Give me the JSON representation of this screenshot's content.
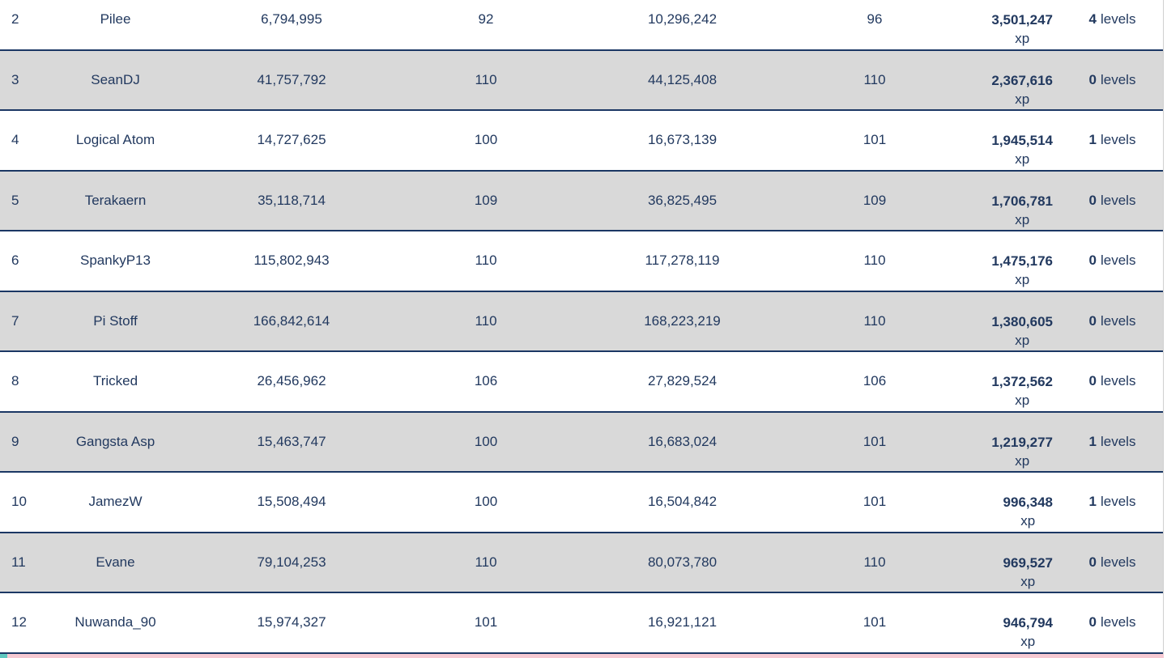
{
  "table": {
    "columns": [
      "rank",
      "name",
      "starting_xp",
      "starting_level",
      "current_xp",
      "current_level",
      "gained_xp",
      "gained_levels"
    ],
    "rows": [
      {
        "rank": "2",
        "name": "Pilee",
        "start_xp": "6,794,995",
        "start_level": "92",
        "current_xp": "10,296,242",
        "current_level": "96",
        "gained_xp": "3,501,247",
        "xp_label": "xp",
        "gained_levels": "4",
        "levels_label": "levels"
      },
      {
        "rank": "3",
        "name": "SeanDJ",
        "start_xp": "41,757,792",
        "start_level": "110",
        "current_xp": "44,125,408",
        "current_level": "110",
        "gained_xp": "2,367,616",
        "xp_label": "xp",
        "gained_levels": "0",
        "levels_label": "levels"
      },
      {
        "rank": "4",
        "name": "Logical Atom",
        "start_xp": "14,727,625",
        "start_level": "100",
        "current_xp": "16,673,139",
        "current_level": "101",
        "gained_xp": "1,945,514",
        "xp_label": "xp",
        "gained_levels": "1",
        "levels_label": "levels"
      },
      {
        "rank": "5",
        "name": "Terakaern",
        "start_xp": "35,118,714",
        "start_level": "109",
        "current_xp": "36,825,495",
        "current_level": "109",
        "gained_xp": "1,706,781",
        "xp_label": "xp",
        "gained_levels": "0",
        "levels_label": "levels"
      },
      {
        "rank": "6",
        "name": "SpankyP13",
        "start_xp": "115,802,943",
        "start_level": "110",
        "current_xp": "117,278,119",
        "current_level": "110",
        "gained_xp": "1,475,176",
        "xp_label": "xp",
        "gained_levels": "0",
        "levels_label": "levels"
      },
      {
        "rank": "7",
        "name": "Pi Stoff",
        "start_xp": "166,842,614",
        "start_level": "110",
        "current_xp": "168,223,219",
        "current_level": "110",
        "gained_xp": "1,380,605",
        "xp_label": "xp",
        "gained_levels": "0",
        "levels_label": "levels"
      },
      {
        "rank": "8",
        "name": "Tricked",
        "start_xp": "26,456,962",
        "start_level": "106",
        "current_xp": "27,829,524",
        "current_level": "106",
        "gained_xp": "1,372,562",
        "xp_label": "xp",
        "gained_levels": "0",
        "levels_label": "levels"
      },
      {
        "rank": "9",
        "name": "Gangsta Asp",
        "start_xp": "15,463,747",
        "start_level": "100",
        "current_xp": "16,683,024",
        "current_level": "101",
        "gained_xp": "1,219,277",
        "xp_label": "xp",
        "gained_levels": "1",
        "levels_label": "levels"
      },
      {
        "rank": "10",
        "name": "JamezW",
        "start_xp": "15,508,494",
        "start_level": "100",
        "current_xp": "16,504,842",
        "current_level": "101",
        "gained_xp": "996,348",
        "xp_label": "xp",
        "gained_levels": "1",
        "levels_label": "levels"
      },
      {
        "rank": "11",
        "name": "Evane",
        "start_xp": "79,104,253",
        "start_level": "110",
        "current_xp": "80,073,780",
        "current_level": "110",
        "gained_xp": "969,527",
        "xp_label": "xp",
        "gained_levels": "0",
        "levels_label": "levels"
      },
      {
        "rank": "12",
        "name": "Nuwanda_90",
        "start_xp": "15,974,327",
        "start_level": "101",
        "current_xp": "16,921,121",
        "current_level": "101",
        "gained_xp": "946,794",
        "xp_label": "xp",
        "gained_levels": "0",
        "levels_label": "levels"
      }
    ]
  },
  "colors": {
    "text": "#22395f",
    "border": "#1b3764",
    "alt_row": "#d9d9d9",
    "next_row_pink": "#f6c9d2",
    "next_row_teal": "#5fc8bf",
    "table_edge": "#cfcfcf"
  }
}
